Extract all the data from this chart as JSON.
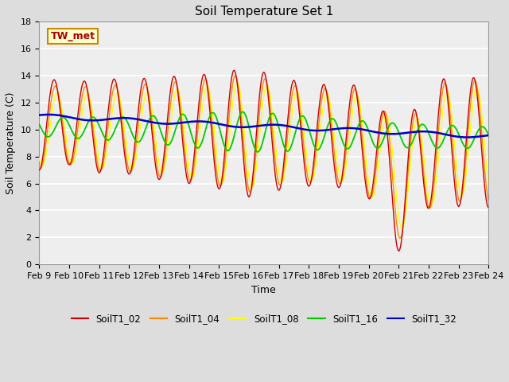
{
  "title": "Soil Temperature Set 1",
  "xlabel": "Time",
  "ylabel": "Soil Temperature (C)",
  "ylim": [
    0,
    18
  ],
  "xlim": [
    0,
    360
  ],
  "xtick_labels": [
    "Feb 9",
    "Feb 10",
    "Feb 11",
    "Feb 12",
    "Feb 13",
    "Feb 14",
    "Feb 15",
    "Feb 16",
    "Feb 17",
    "Feb 18",
    "Feb 19",
    "Feb 20",
    "Feb 21",
    "Feb 22",
    "Feb 23",
    "Feb 24"
  ],
  "xtick_positions": [
    0,
    24,
    48,
    72,
    96,
    120,
    144,
    168,
    192,
    216,
    240,
    264,
    288,
    312,
    336,
    360
  ],
  "fig_bg_color": "#dddddd",
  "plot_bg_color": "#eeeeee",
  "grid_color": "#ffffff",
  "series_colors": {
    "SoilT1_02": "#cc0000",
    "SoilT1_04": "#ff8800",
    "SoilT1_08": "#ffff00",
    "SoilT1_16": "#00cc00",
    "SoilT1_32": "#0000cc"
  },
  "annotation_text": "TW_met",
  "annotation_color": "#aa0000",
  "annotation_bg": "#ffffcc",
  "annotation_border": "#cc8800",
  "title_fontsize": 11,
  "axis_fontsize": 9,
  "tick_fontsize": 8
}
